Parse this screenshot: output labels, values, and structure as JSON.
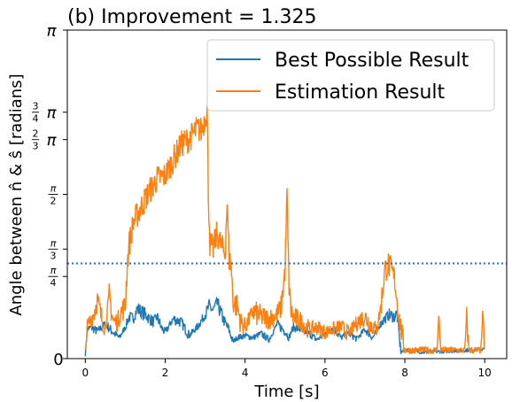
{
  "chart_data": {
    "type": "line",
    "title": "(b) Improvement = 1.325",
    "xlabel": "Time [s]",
    "ylabel": "Angle between n̂ & ŝ [radians]",
    "xlim": [
      -0.45,
      10.55
    ],
    "ylim": [
      0,
      3.14159
    ],
    "x_ticks": [
      {
        "value": 0,
        "label": "0"
      },
      {
        "value": 2,
        "label": "2"
      },
      {
        "value": 4,
        "label": "4"
      },
      {
        "value": 6,
        "label": "6"
      },
      {
        "value": 8,
        "label": "8"
      },
      {
        "value": 10,
        "label": "10"
      }
    ],
    "y_ticks": [
      {
        "value": 0,
        "label": "0"
      },
      {
        "value": 0.7854,
        "label": "π/4"
      },
      {
        "value": 1.0472,
        "label": "π/3"
      },
      {
        "value": 1.5708,
        "label": "π/2"
      },
      {
        "value": 2.0944,
        "label": "2/3 π"
      },
      {
        "value": 2.3562,
        "label": "3/4 π"
      },
      {
        "value": 3.14159,
        "label": "π"
      }
    ],
    "reference_line": {
      "y": 0.91,
      "style": "dotted",
      "color": "#1f77b4"
    },
    "legend_position": "top-right",
    "grid": false,
    "series": [
      {
        "name": "Best Possible Result",
        "color": "#1f77b4",
        "x": [
          0,
          0.05,
          0.15,
          0.3,
          0.5,
          0.7,
          0.85,
          1.0,
          1.1,
          1.2,
          1.3,
          1.5,
          1.7,
          1.8,
          1.9,
          2.0,
          2.2,
          2.4,
          2.6,
          2.8,
          3.0,
          3.1,
          3.2,
          3.3,
          3.45,
          3.6,
          3.7,
          3.8,
          4.0,
          4.2,
          4.4,
          4.6,
          4.8,
          5.0,
          5.1,
          5.2,
          5.4,
          5.6,
          5.8,
          6.0,
          6.2,
          6.4,
          6.6,
          6.8,
          7.0,
          7.2,
          7.4,
          7.6,
          7.75,
          7.8,
          7.9,
          8.0,
          8.5,
          9.0,
          9.5,
          10.0
        ],
        "y": [
          0.04,
          0.28,
          0.3,
          0.26,
          0.33,
          0.25,
          0.2,
          0.3,
          0.4,
          0.38,
          0.48,
          0.42,
          0.35,
          0.4,
          0.3,
          0.25,
          0.38,
          0.35,
          0.22,
          0.3,
          0.42,
          0.5,
          0.46,
          0.53,
          0.38,
          0.27,
          0.16,
          0.2,
          0.22,
          0.2,
          0.24,
          0.18,
          0.33,
          0.26,
          0.2,
          0.3,
          0.28,
          0.24,
          0.18,
          0.24,
          0.3,
          0.2,
          0.24,
          0.19,
          0.28,
          0.2,
          0.34,
          0.42,
          0.4,
          0.44,
          0.06,
          0.08,
          0.06,
          0.07,
          0.08,
          0.09
        ]
      },
      {
        "name": "Estimation Result",
        "color": "#ff7f0e",
        "x": [
          0,
          0.05,
          0.1,
          0.2,
          0.3,
          0.4,
          0.5,
          0.6,
          0.7,
          0.8,
          0.9,
          1.0,
          1.05,
          1.1,
          1.2,
          1.4,
          1.6,
          1.8,
          2.0,
          2.2,
          2.4,
          2.6,
          2.8,
          2.9,
          3.0,
          3.05,
          3.08,
          3.12,
          3.2,
          3.3,
          3.4,
          3.5,
          3.55,
          3.6,
          3.65,
          3.7,
          3.8,
          3.9,
          4.0,
          4.2,
          4.4,
          4.6,
          4.8,
          4.9,
          5.0,
          5.05,
          5.1,
          5.15,
          5.2,
          5.4,
          5.6,
          5.8,
          6.0,
          6.2,
          6.4,
          6.6,
          6.8,
          7.0,
          7.2,
          7.3,
          7.4,
          7.5,
          7.6,
          7.7,
          7.75,
          7.85,
          8.0,
          8.5,
          8.8,
          8.85,
          8.9,
          9.5,
          9.55,
          9.6,
          9.9,
          9.95,
          10.0
        ],
        "y": [
          0.06,
          0.3,
          0.35,
          0.42,
          0.55,
          0.4,
          0.3,
          0.6,
          0.36,
          0.35,
          0.45,
          0.5,
          0.9,
          1.1,
          1.3,
          1.45,
          1.6,
          1.72,
          1.75,
          1.9,
          2.05,
          2.1,
          2.2,
          2.18,
          2.3,
          2.4,
          1.6,
          1.1,
          1.05,
          1.2,
          1.08,
          1.0,
          1.5,
          0.95,
          0.9,
          0.55,
          0.5,
          0.35,
          0.3,
          0.45,
          0.4,
          0.38,
          0.42,
          0.48,
          0.85,
          1.55,
          0.7,
          0.45,
          0.4,
          0.35,
          0.28,
          0.3,
          0.25,
          0.28,
          0.3,
          0.24,
          0.35,
          0.4,
          0.3,
          0.28,
          0.5,
          0.85,
          0.9,
          0.8,
          0.75,
          0.4,
          0.08,
          0.08,
          0.08,
          0.38,
          0.08,
          0.08,
          0.4,
          0.08,
          0.08,
          0.38,
          0.1
        ]
      }
    ]
  }
}
